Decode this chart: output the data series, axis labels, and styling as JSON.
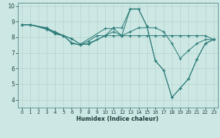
{
  "title": "",
  "xlabel": "Humidex (Indice chaleur)",
  "bg_color": "#cde8e4",
  "grid_color": "#b8d4cf",
  "line_color": "#2e7d7a",
  "marker": "+",
  "xlim": [
    -0.5,
    23.5
  ],
  "ylim": [
    3.5,
    10.2
  ],
  "xticks": [
    0,
    1,
    2,
    3,
    4,
    5,
    6,
    7,
    8,
    9,
    10,
    11,
    12,
    13,
    14,
    15,
    16,
    17,
    18,
    19,
    20,
    21,
    22,
    23
  ],
  "yticks": [
    4,
    5,
    6,
    7,
    8,
    9,
    10
  ],
  "series": [
    {
      "x": [
        0,
        1,
        3,
        4,
        5,
        6,
        7,
        10,
        11,
        12,
        13,
        14,
        15,
        16,
        17,
        18,
        19,
        20,
        21,
        22,
        23
      ],
      "y": [
        8.8,
        8.8,
        8.6,
        8.3,
        8.1,
        7.9,
        7.55,
        8.55,
        8.55,
        8.1,
        9.8,
        9.8,
        8.7,
        6.5,
        5.9,
        4.15,
        4.75,
        5.35,
        6.6,
        7.6,
        7.85
      ]
    },
    {
      "x": [
        0,
        1,
        3,
        4,
        5,
        6,
        7,
        8,
        9,
        10,
        11,
        12,
        13,
        14,
        15,
        16,
        17,
        18,
        19,
        20,
        21,
        22,
        23
      ],
      "y": [
        8.8,
        8.8,
        8.55,
        8.2,
        8.1,
        7.6,
        7.5,
        7.75,
        8.1,
        8.1,
        8.1,
        8.1,
        8.1,
        8.1,
        8.1,
        8.1,
        8.1,
        8.1,
        8.1,
        8.1,
        8.1,
        8.1,
        7.85
      ]
    },
    {
      "x": [
        0,
        1,
        3,
        4,
        5,
        6,
        7,
        8,
        9,
        10,
        11,
        12,
        13,
        14,
        16,
        17,
        18,
        19,
        20,
        21,
        22,
        23
      ],
      "y": [
        8.8,
        8.8,
        8.5,
        8.25,
        8.1,
        7.65,
        7.5,
        7.6,
        7.85,
        8.1,
        8.35,
        8.1,
        8.35,
        8.6,
        8.6,
        8.35,
        7.6,
        6.65,
        7.15,
        7.6,
        7.85,
        7.85
      ]
    },
    {
      "x": [
        0,
        1,
        3,
        4,
        5,
        6,
        7,
        8,
        10,
        11,
        12,
        13,
        14,
        15,
        16,
        17,
        18,
        19,
        20,
        21,
        22,
        23
      ],
      "y": [
        8.8,
        8.8,
        8.55,
        8.35,
        8.1,
        7.9,
        7.55,
        7.55,
        8.1,
        8.6,
        8.6,
        9.8,
        9.8,
        8.7,
        6.5,
        5.9,
        4.15,
        4.75,
        5.35,
        6.6,
        7.6,
        7.85
      ]
    }
  ]
}
